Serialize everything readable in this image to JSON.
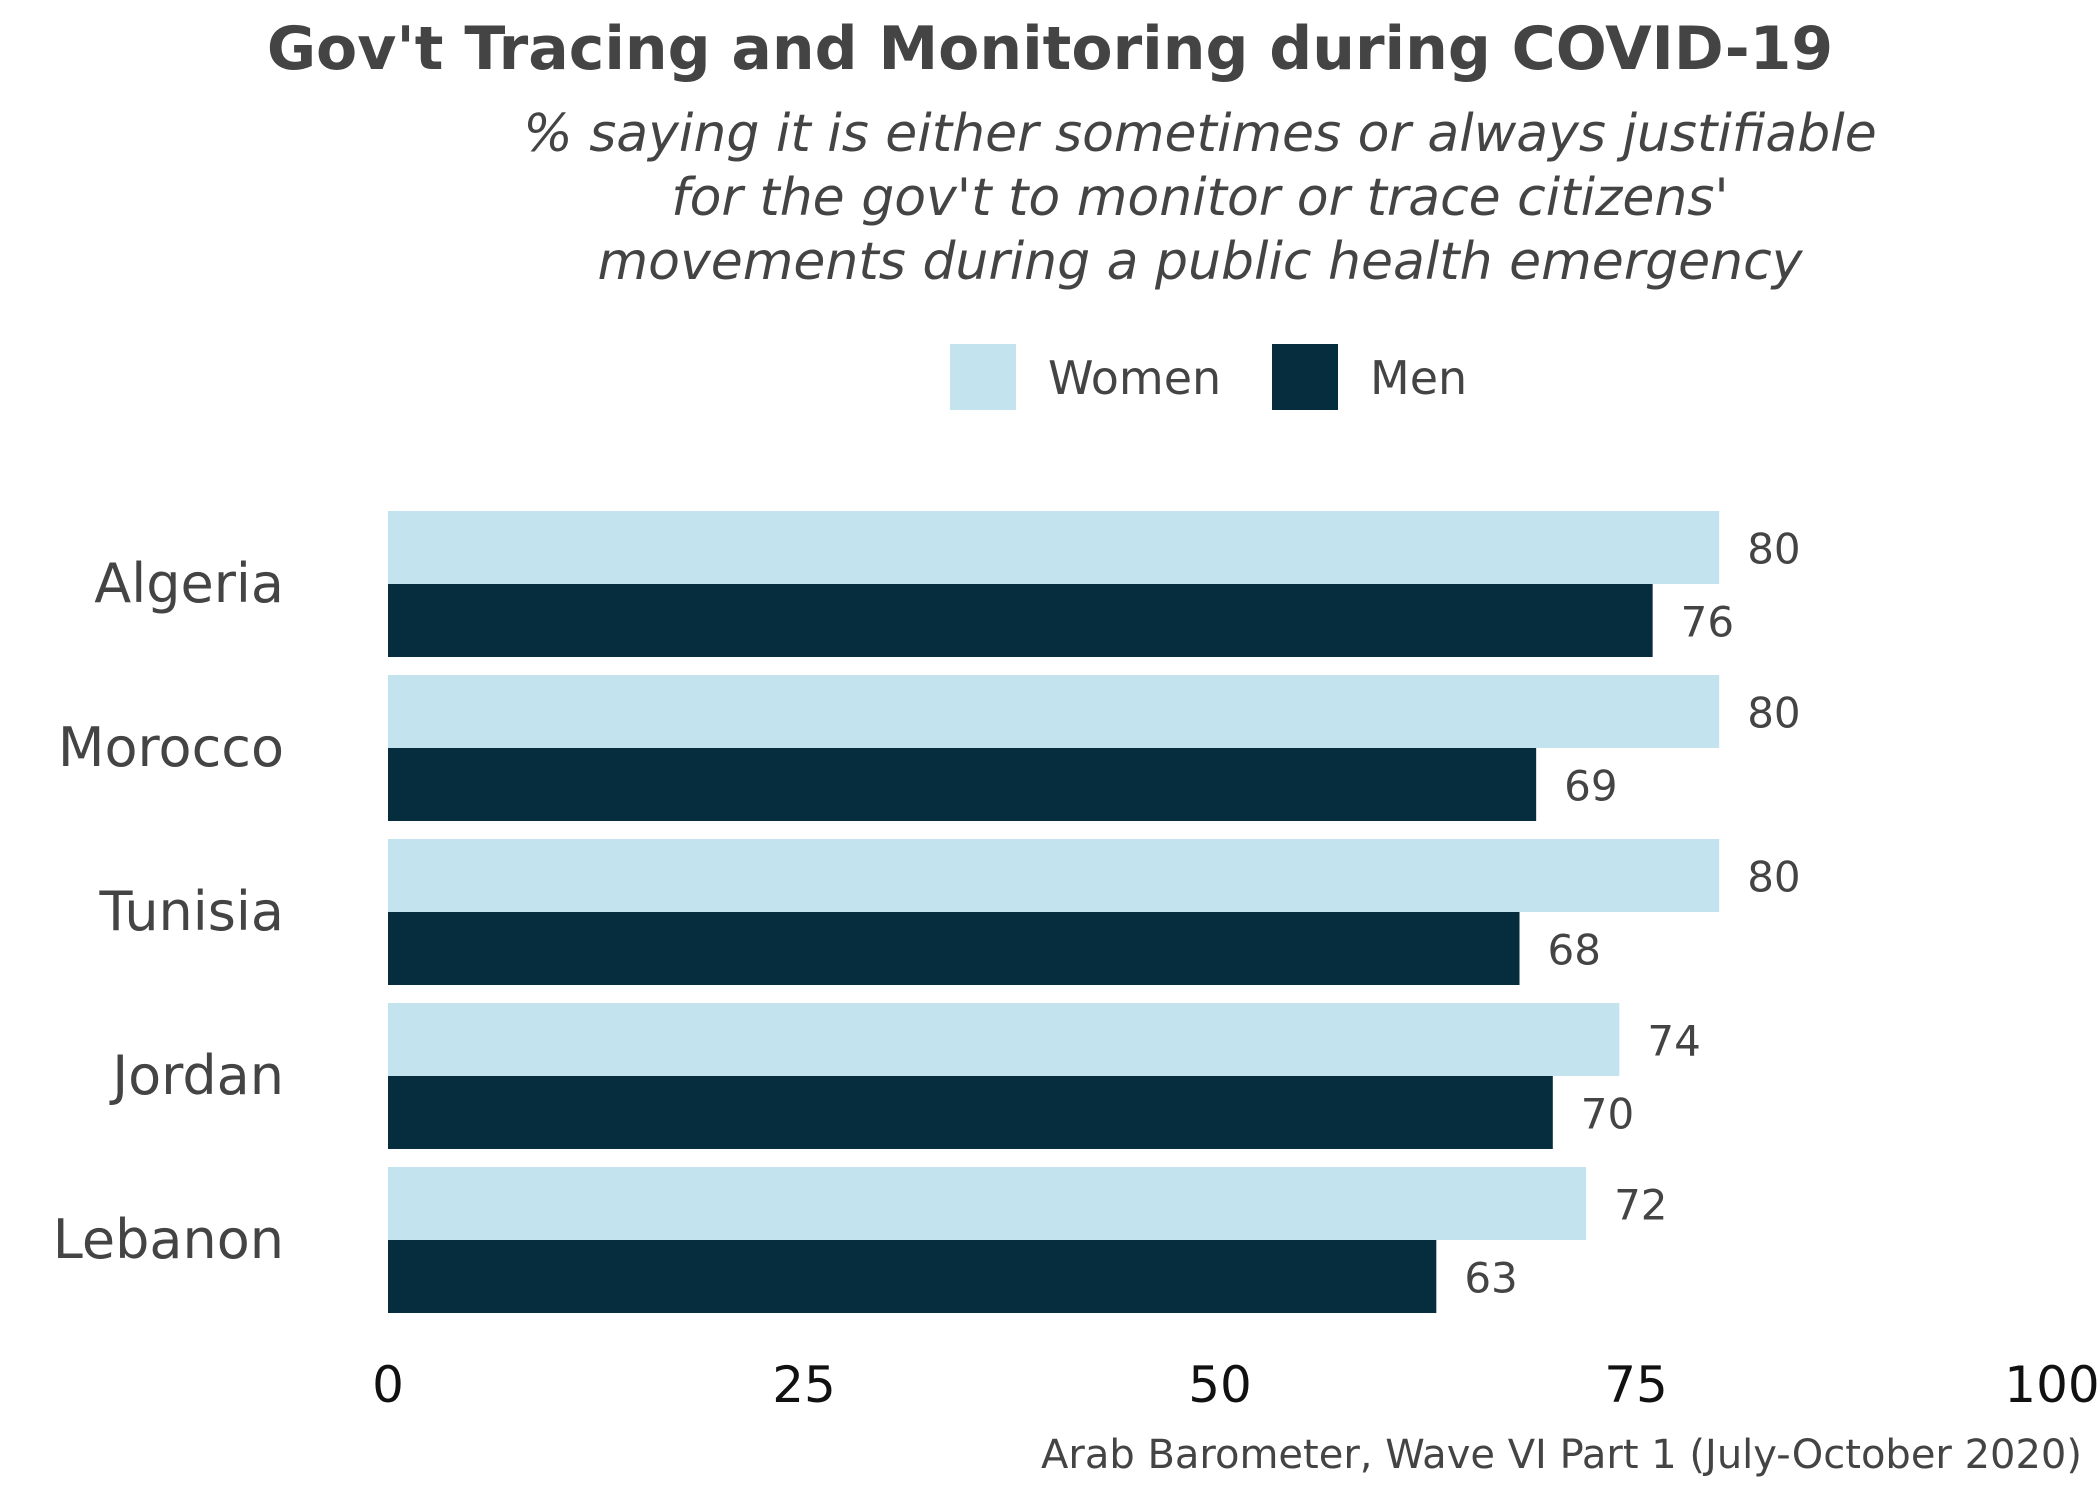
{
  "chart_data": {
    "type": "bar",
    "orientation": "horizontal",
    "title": "Gov't Tracing and Monitoring during COVID-19",
    "subtitle": [
      "% saying it is either sometimes or always justifiable",
      "for the gov't to monitor or trace citizens'",
      "movements during a public health emergency"
    ],
    "categories": [
      "Algeria",
      "Morocco",
      "Tunisia",
      "Jordan",
      "Lebanon"
    ],
    "series": [
      {
        "name": "Women",
        "color": "#c3e4ee",
        "values": [
          80,
          80,
          80,
          74,
          72
        ]
      },
      {
        "name": "Men",
        "color": "#062d3d",
        "values": [
          76,
          69,
          68,
          70,
          63
        ]
      }
    ],
    "xlim": [
      0,
      100
    ],
    "xticks": [
      0,
      25,
      50,
      75,
      100
    ],
    "xtick_labels": [
      "0",
      "25",
      "50",
      "75",
      "100"
    ],
    "xlabel": "",
    "ylabel": "",
    "grid": false,
    "legend_position": "top",
    "caption": "Arab Barometer, Wave VI Part 1 (July-October 2020)"
  }
}
